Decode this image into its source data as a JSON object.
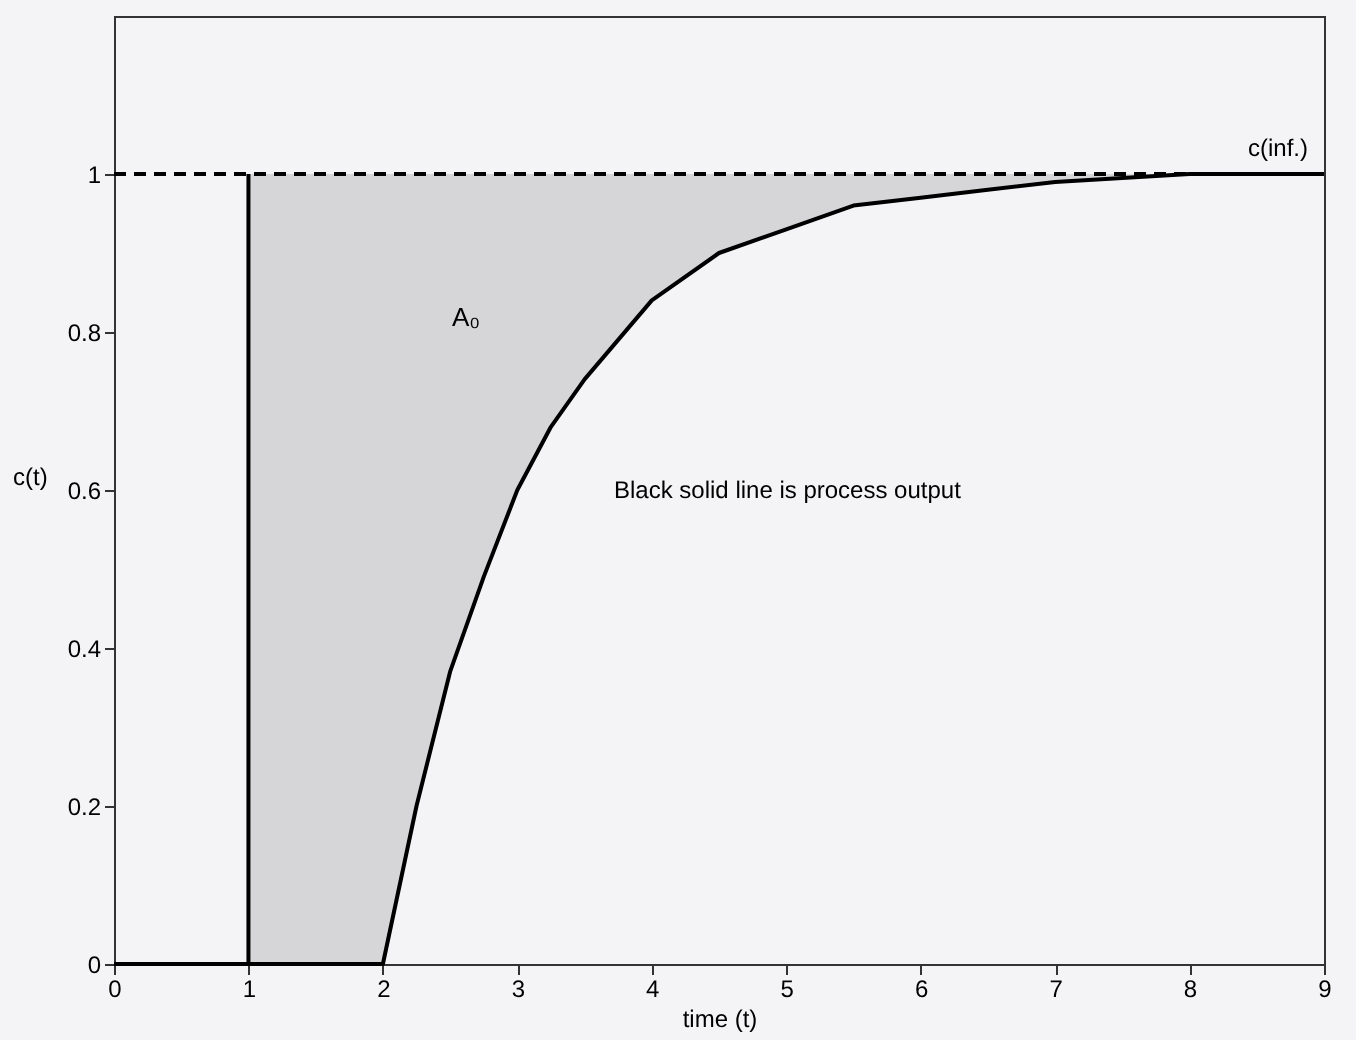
{
  "chart_data": {
    "type": "line",
    "xlabel": "time (t)",
    "ylabel": "c(t)",
    "xlim": [
      0,
      9
    ],
    "xticks": [
      0,
      1,
      2,
      3,
      4,
      5,
      6,
      7,
      8,
      9
    ],
    "ylim": [
      0,
      1.2
    ],
    "yticks": [
      0,
      0.2,
      0.4,
      0.6,
      0.8,
      1
    ],
    "grid": false,
    "marker": "none",
    "series": [
      {
        "color": "#000000",
        "line_style": "solid",
        "x": [
          0,
          1,
          2,
          2.25,
          2.5,
          2.75,
          3,
          3.25,
          3.5,
          4,
          4.5,
          5,
          5.5,
          6,
          6.5,
          7,
          8,
          9
        ],
        "values": [
          0,
          0,
          0,
          0.2,
          0.37,
          0.49,
          0.6,
          0.68,
          0.74,
          0.84,
          0.9,
          0.93,
          0.96,
          0.97,
          0.98,
          0.99,
          1,
          1
        ],
        "lower": [
          null,
          0,
          0,
          0.2,
          0.37,
          0.49,
          0.6,
          0.68,
          0.74,
          0.84,
          0.9,
          0.93,
          0.96,
          0.97,
          0.98,
          0.99,
          1,
          1
        ],
        "upper": [
          null,
          1,
          1,
          1,
          1,
          1,
          1,
          1,
          1,
          1,
          1,
          1,
          1,
          1,
          1,
          1,
          1,
          1
        ]
      },
      {
        "color": "#000000",
        "line_style": "solid",
        "x": [
          1,
          1,
          1
        ],
        "values": [
          0,
          0.5,
          1
        ]
      }
    ],
    "ref_lines": [
      {
        "axis": "y",
        "value": 1,
        "label": "c(inf.)",
        "line_style": "dashed",
        "color": "#000000"
      }
    ],
    "annotations": [
      "A₀",
      "Black solid line is process output"
    ]
  }
}
